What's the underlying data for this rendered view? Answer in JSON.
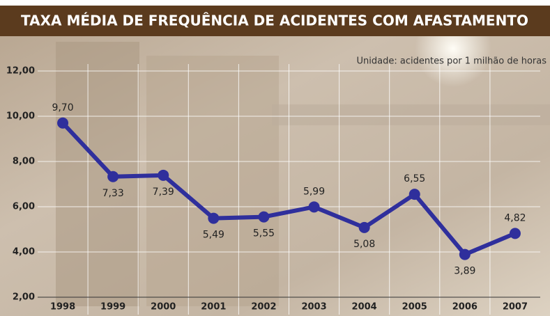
{
  "chart_data": {
    "type": "line",
    "title": "TAXA MÉDIA DE FREQUÊNCIA DE ACIDENTES COM AFASTAMENTO",
    "subtitle": "Unidade: acidentes por 1 milhão de horas",
    "categories": [
      "1998",
      "1999",
      "2000",
      "2001",
      "2002",
      "2003",
      "2004",
      "2005",
      "2006",
      "2007"
    ],
    "values": [
      9.7,
      7.33,
      7.39,
      5.49,
      5.55,
      5.99,
      5.08,
      6.55,
      3.89,
      4.82
    ],
    "value_labels": [
      "9,70",
      "7,33",
      "7,39",
      "5,49",
      "5,55",
      "5,99",
      "5,08",
      "6,55",
      "3,89",
      "4,82"
    ],
    "color": "#2f2f9c",
    "ylim": [
      2,
      12
    ],
    "yticks": [
      {
        "value": 2,
        "label": "2,00"
      },
      {
        "value": 4,
        "label": "4,00"
      },
      {
        "value": 6,
        "label": "6,00"
      },
      {
        "value": 8,
        "label": "8,00"
      },
      {
        "value": 10,
        "label": "10,00"
      },
      {
        "value": 12,
        "label": "12,00"
      }
    ],
    "grid": true
  }
}
